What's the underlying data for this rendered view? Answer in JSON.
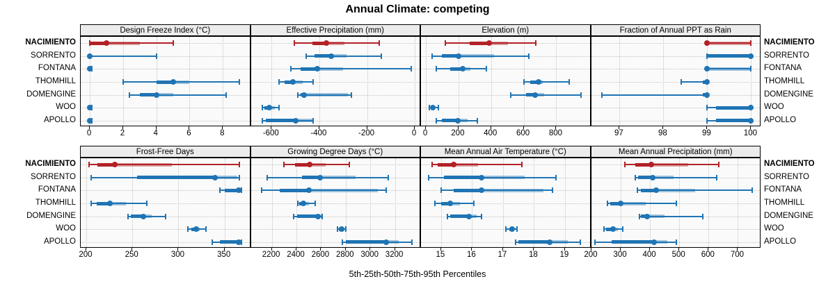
{
  "title": "Annual Climate: competing",
  "caption": "5th-25th-50th-75th-95th Percentiles",
  "sites": [
    "NACIMIENTO",
    "SORRENTO",
    "FONTANA",
    "THOMHILL",
    "DOMENGINE",
    "WOO",
    "APOLLO"
  ],
  "highlighted_site": "NACIMIENTO",
  "colors": {
    "highlight": "#b22126",
    "normal": "#1f74b4",
    "grid": "#c3c3c3",
    "panel_bg": "#fafafa",
    "strip_bg": "#ececec",
    "border": "#000000"
  },
  "chart_data": {
    "type": "scatter",
    "style": "percentile-interval-dotplot",
    "title": "Annual Climate: competing",
    "caption": "5th-25th-50th-75th-95th Percentiles",
    "rows_top_to_bottom": [
      "NACIMIENTO",
      "SORRENTO",
      "FONTANA",
      "THOMHILL",
      "DOMENGINE",
      "WOO",
      "APOLLO"
    ],
    "percentile_order": [
      "p5",
      "p25",
      "p50",
      "p75",
      "p95"
    ],
    "panels": [
      {
        "title": "Design Freeze Index (°C)",
        "grid_row": 1,
        "grid_col": 1,
        "xlim": [
          -0.55,
          9.6
        ],
        "ticks": [
          0,
          2,
          4,
          6,
          8
        ],
        "series": [
          {
            "site": "NACIMIENTO",
            "percentiles": [
              0,
              0,
              1,
              3,
              5
            ]
          },
          {
            "site": "SORRENTO",
            "percentiles": [
              0,
              0,
              0,
              0,
              4
            ]
          },
          {
            "site": "FONTANA",
            "percentiles": [
              0,
              0,
              0,
              0,
              0.1
            ]
          },
          {
            "site": "THOMHILL",
            "percentiles": [
              2,
              4,
              5,
              6,
              9
            ]
          },
          {
            "site": "DOMENGINE",
            "percentiles": [
              2.4,
              3,
              4,
              5,
              8.2
            ]
          },
          {
            "site": "WOO",
            "percentiles": [
              0,
              0,
              0,
              0,
              0.1
            ]
          },
          {
            "site": "APOLLO",
            "percentiles": [
              0,
              0,
              0,
              0,
              0.1
            ]
          }
        ]
      },
      {
        "title": "Effective Precipitation (mm)",
        "grid_row": 1,
        "grid_col": 2,
        "xlim": [
          -687,
          20
        ],
        "ticks": [
          -600,
          -400,
          -200,
          0
        ],
        "series": [
          {
            "site": "NACIMIENTO",
            "percentiles": [
              -505,
              -430,
              -370,
              -295,
              -150
            ]
          },
          {
            "site": "SORRENTO",
            "percentiles": [
              -455,
              -420,
              -350,
              -285,
              -140
            ]
          },
          {
            "site": "FONTANA",
            "percentiles": [
              -520,
              -480,
              -410,
              -300,
              -15
            ]
          },
          {
            "site": "THOMHILL",
            "percentiles": [
              -570,
              -545,
              -510,
              -470,
              -425
            ]
          },
          {
            "site": "DOMENGINE",
            "percentiles": [
              -490,
              -480,
              -465,
              -280,
              -265
            ]
          },
          {
            "site": "WOO",
            "percentiles": [
              -640,
              -630,
              -610,
              -585,
              -570
            ]
          },
          {
            "site": "APOLLO",
            "percentiles": [
              -640,
              -625,
              -500,
              -430,
              -425
            ]
          }
        ]
      },
      {
        "title": "Elevation (m)",
        "grid_row": 1,
        "grid_col": 3,
        "xlim": [
          -30,
          1005
        ],
        "ticks": [
          0,
          200,
          400,
          600,
          800
        ],
        "series": [
          {
            "site": "NACIMIENTO",
            "percentiles": [
              120,
              270,
              390,
              505,
              675
            ]
          },
          {
            "site": "SORRENTO",
            "percentiles": [
              40,
              100,
              200,
              420,
              630
            ]
          },
          {
            "site": "FONTANA",
            "percentiles": [
              65,
              150,
              225,
              275,
              370
            ]
          },
          {
            "site": "THOMHILL",
            "percentiles": [
              600,
              640,
              690,
              715,
              880
            ]
          },
          {
            "site": "DOMENGINE",
            "percentiles": [
              520,
              615,
              670,
              725,
              950
            ]
          },
          {
            "site": "WOO",
            "percentiles": [
              20,
              28,
              42,
              55,
              78
            ]
          },
          {
            "site": "APOLLO",
            "percentiles": [
              65,
              100,
              195,
              255,
              315
            ]
          }
        ]
      },
      {
        "title": "Fraction of Annual PPT as Rain",
        "grid_row": 1,
        "grid_col": 4,
        "xlim": [
          96.35,
          100.2
        ],
        "ticks": [
          97,
          98,
          99,
          100
        ],
        "series": [
          {
            "site": "NACIMIENTO",
            "percentiles": [
              99,
              99,
              99,
              100,
              100
            ]
          },
          {
            "site": "SORRENTO",
            "percentiles": [
              99,
              99,
              100,
              100,
              100
            ]
          },
          {
            "site": "FONTANA",
            "percentiles": [
              99,
              99,
              99,
              100,
              100
            ]
          },
          {
            "site": "THOMHILL",
            "percentiles": [
              98.4,
              98.9,
              99,
              99,
              99
            ]
          },
          {
            "site": "DOMENGINE",
            "percentiles": [
              96.6,
              98.9,
              99,
              99,
              99
            ]
          },
          {
            "site": "WOO",
            "percentiles": [
              99,
              99.2,
              100,
              100,
              100
            ]
          },
          {
            "site": "APOLLO",
            "percentiles": [
              99,
              99.2,
              100,
              100,
              100
            ]
          }
        ]
      },
      {
        "title": "Frost-Free Days",
        "grid_row": 2,
        "grid_col": 1,
        "xlim": [
          194,
          377
        ],
        "ticks": [
          200,
          250,
          300,
          350
        ],
        "series": [
          {
            "site": "NACIMIENTO",
            "percentiles": [
              203,
              212,
              231,
              293,
              366
            ]
          },
          {
            "site": "SORRENTO",
            "percentiles": [
              205,
              255,
              340,
              364,
              366
            ]
          },
          {
            "site": "FONTANA",
            "percentiles": [
              345,
              350,
              365,
              366,
              368
            ]
          },
          {
            "site": "THOMHILL",
            "percentiles": [
              205,
              211,
              226,
              243,
              266
            ]
          },
          {
            "site": "DOMENGINE",
            "percentiles": [
              245,
              248,
              262,
              271,
              286
            ]
          },
          {
            "site": "WOO",
            "percentiles": [
              310,
              314,
              319,
              323,
              330
            ]
          },
          {
            "site": "APOLLO",
            "percentiles": [
              337,
              345,
              365,
              366,
              368
            ]
          }
        ]
      },
      {
        "title": "Growing Degree Days (°C)",
        "grid_row": 2,
        "grid_col": 2,
        "xlim": [
          2030,
          3400
        ],
        "ticks": [
          2200,
          2400,
          2600,
          2800,
          3000,
          3200
        ],
        "series": [
          {
            "site": "NACIMIENTO",
            "percentiles": [
              2300,
              2390,
              2510,
              2640,
              2830
            ]
          },
          {
            "site": "SORRENTO",
            "percentiles": [
              2165,
              2445,
              2590,
              2880,
              3145
            ]
          },
          {
            "site": "FONTANA",
            "percentiles": [
              2115,
              2265,
              2500,
              3060,
              3130
            ]
          },
          {
            "site": "THOMHILL",
            "percentiles": [
              2410,
              2425,
              2455,
              2500,
              2555
            ]
          },
          {
            "site": "DOMENGINE",
            "percentiles": [
              2375,
              2405,
              2575,
              2602,
              2611
            ]
          },
          {
            "site": "WOO",
            "percentiles": [
              2735,
              2745,
              2770,
              2790,
              2800
            ]
          },
          {
            "site": "APOLLO",
            "percentiles": [
              2775,
              2800,
              3130,
              3230,
              3340
            ]
          }
        ]
      },
      {
        "title": "Mean Annual Air Temperature (°C)",
        "grid_row": 2,
        "grid_col": 3,
        "xlim": [
          14.35,
          19.8
        ],
        "ticks": [
          15,
          16,
          17,
          18,
          19
        ],
        "series": [
          {
            "site": "NACIMIENTO",
            "percentiles": [
              14.7,
              14.9,
              15.4,
              16.2,
              17.6
            ]
          },
          {
            "site": "SORRENTO",
            "percentiles": [
              14.6,
              15.1,
              16.3,
              17.7,
              18.7
            ]
          },
          {
            "site": "FONTANA",
            "percentiles": [
              15.0,
              15.4,
              16.3,
              18.3,
              18.6
            ]
          },
          {
            "site": "THOMHILL",
            "percentiles": [
              14.8,
              15.0,
              15.3,
              15.6,
              16.05
            ]
          },
          {
            "site": "DOMENGINE",
            "percentiles": [
              15.2,
              15.3,
              15.9,
              16.15,
              16.3
            ]
          },
          {
            "site": "WOO",
            "percentiles": [
              17.1,
              17.2,
              17.3,
              17.35,
              17.45
            ]
          },
          {
            "site": "APOLLO",
            "percentiles": [
              17.4,
              17.5,
              18.5,
              19.1,
              19.5
            ]
          }
        ]
      },
      {
        "title": "Mean Annual Precipitation (mm)",
        "grid_row": 2,
        "grid_col": 4,
        "xlim": [
          199,
          775
        ],
        "ticks": [
          200,
          300,
          400,
          500,
          600,
          700
        ],
        "series": [
          {
            "site": "NACIMIENTO",
            "percentiles": [
              315,
              350,
              405,
              530,
              635
            ]
          },
          {
            "site": "SORRENTO",
            "percentiles": [
              350,
              360,
              410,
              480,
              628
            ]
          },
          {
            "site": "FONTANA",
            "percentiles": [
              358,
              370,
              420,
              555,
              750
            ]
          },
          {
            "site": "THOMHILL",
            "percentiles": [
              255,
              265,
              300,
              385,
              490
            ]
          },
          {
            "site": "DOMENGINE",
            "percentiles": [
              365,
              370,
              390,
              450,
              580
            ]
          },
          {
            "site": "WOO",
            "percentiles": [
              243,
              250,
              275,
              290,
              308
            ]
          },
          {
            "site": "APOLLO",
            "percentiles": [
              212,
              270,
              415,
              460,
              490
            ]
          }
        ]
      }
    ]
  }
}
